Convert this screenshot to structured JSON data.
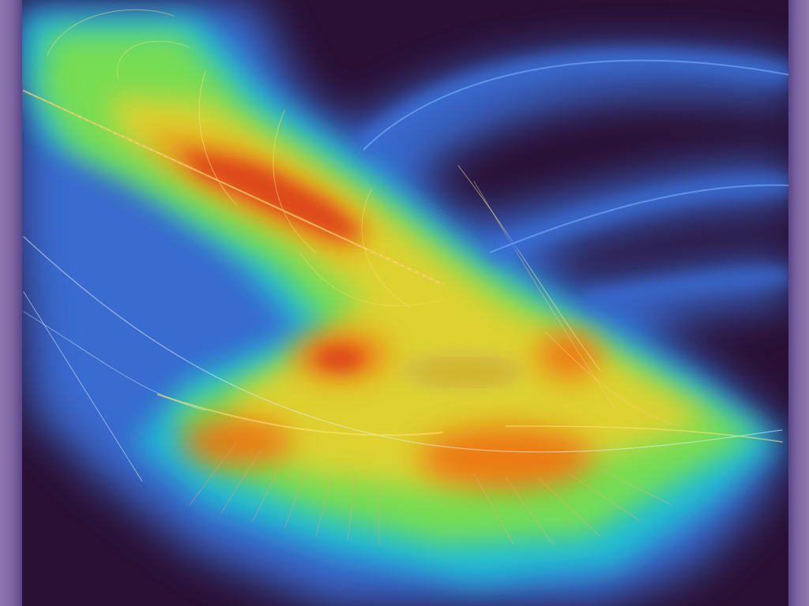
{
  "image": {
    "kind": "heatmap-overlay",
    "description_hidden": true,
    "palette": {
      "background": "#2a1034",
      "cold": "#3a6fd8",
      "cool": "#1fc7d6",
      "mid": "#7fe04a",
      "warm": "#f0d02a",
      "hot": "#f06a10",
      "hottest": "#d8361a",
      "edge": "#8f78b0"
    }
  }
}
